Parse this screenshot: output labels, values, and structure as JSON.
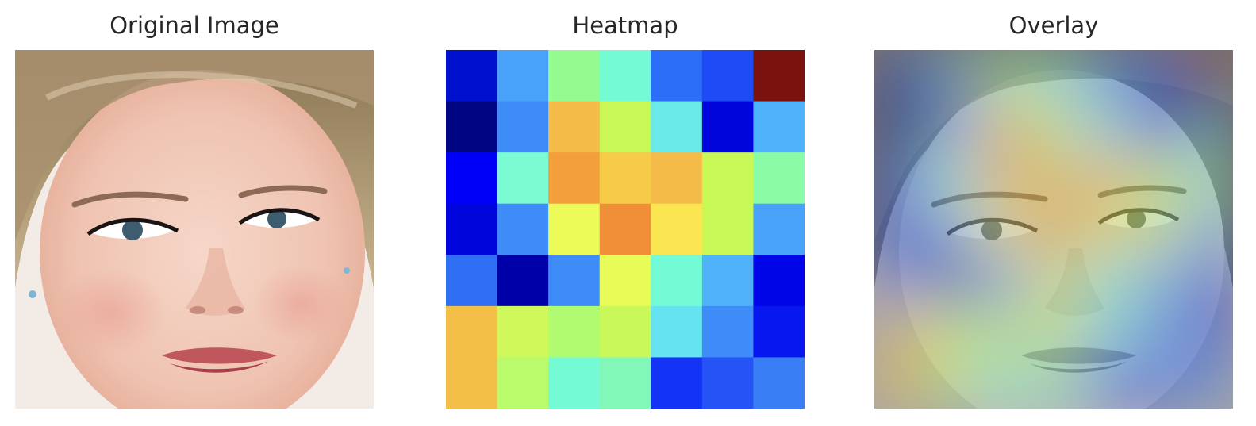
{
  "panels": {
    "original": {
      "title": "Original Image"
    },
    "heatmap": {
      "title": "Heatmap"
    },
    "overlay": {
      "title": "Overlay"
    }
  },
  "heatmap": {
    "rows": 7,
    "cols": 7,
    "colormap": "jet",
    "colors": [
      [
        "#0010cf",
        "#48a2fa",
        "#95fb90",
        "#74fbd6",
        "#2d6ef8",
        "#1f4bf7",
        "#7a130d"
      ],
      [
        "#000583",
        "#3e8cf7",
        "#f4bb48",
        "#c7f856",
        "#6ae9e9",
        "#0005dc",
        "#4fb2fa"
      ],
      [
        "#0000f8",
        "#7cfbd3",
        "#f3a03c",
        "#f6cb47",
        "#f4bb48",
        "#c7f856",
        "#8bfba6"
      ],
      [
        "#0005dc",
        "#3e8cf7",
        "#ecfb57",
        "#f08f37",
        "#f9e650",
        "#c7f856",
        "#48a2fa"
      ],
      [
        "#2f6ff4",
        "#0000a8",
        "#3e8cf7",
        "#e8fb57",
        "#74fbd6",
        "#4fb2fa",
        "#0005e8"
      ],
      [
        "#f4bf47",
        "#cff95a",
        "#b1fb71",
        "#c9f85b",
        "#66e3f0",
        "#3e8cf7",
        "#0617ef"
      ],
      [
        "#f4bf47",
        "#b9fb6b",
        "#74fbd6",
        "#82f8b8",
        "#1434f5",
        "#2553f6",
        "#3a7ef6"
      ]
    ]
  },
  "colors": {
    "background": "#ffffff",
    "title_text": "#262626"
  }
}
